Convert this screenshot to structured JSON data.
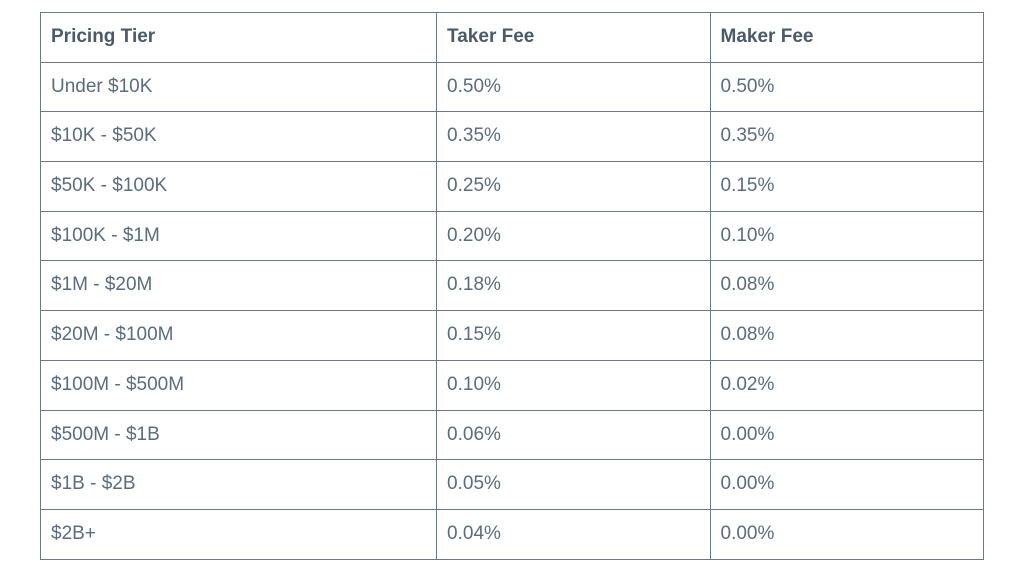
{
  "table": {
    "columns": [
      {
        "label": "Pricing Tier",
        "class": "col-tier"
      },
      {
        "label": "Taker Fee",
        "class": "col-taker"
      },
      {
        "label": "Maker Fee",
        "class": "col-maker"
      }
    ],
    "rows": [
      {
        "tier": "Under $10K",
        "taker": "0.50%",
        "maker": "0.50%"
      },
      {
        "tier": "$10K - $50K",
        "taker": "0.35%",
        "maker": "0.35%"
      },
      {
        "tier": "$50K - $100K",
        "taker": "0.25%",
        "maker": "0.15%"
      },
      {
        "tier": "$100K - $1M",
        "taker": "0.20%",
        "maker": "0.10%"
      },
      {
        "tier": "$1M - $20M",
        "taker": "0.18%",
        "maker": "0.08%"
      },
      {
        "tier": "$20M - $100M",
        "taker": "0.15%",
        "maker": "0.08%"
      },
      {
        "tier": "$100M - $500M",
        "taker": "0.10%",
        "maker": "0.02%"
      },
      {
        "tier": "$500M - $1B",
        "taker": "0.06%",
        "maker": "0.00%"
      },
      {
        "tier": "$1B - $2B",
        "taker": "0.05%",
        "maker": "0.00%"
      },
      {
        "tier": "$2B+",
        "taker": "0.04%",
        "maker": "0.00%"
      }
    ],
    "colors": {
      "border": "#6b7a8a",
      "header_text": "#4a5a6a",
      "cell_text": "#5a6c7d",
      "background": "#ffffff"
    },
    "font_size": 19
  }
}
